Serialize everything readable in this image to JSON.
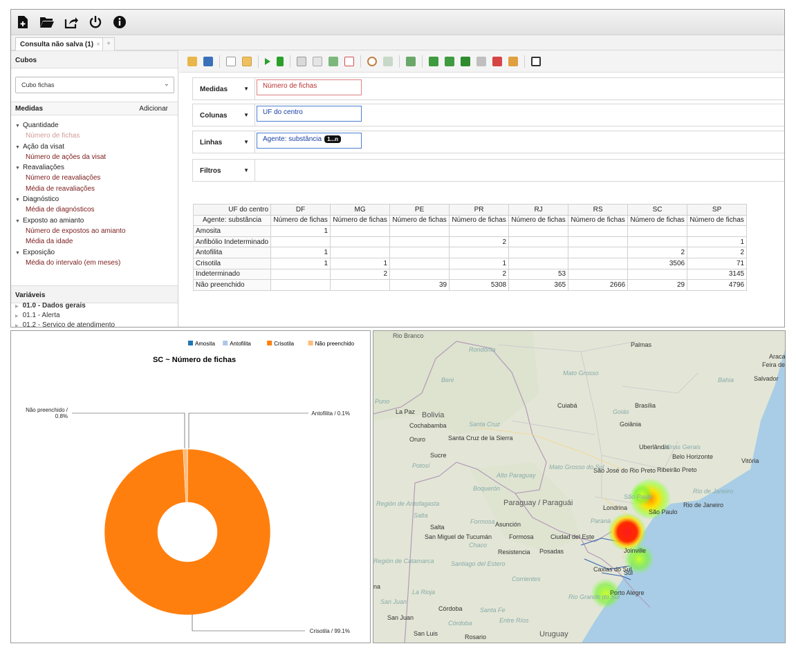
{
  "tabs": [
    {
      "label": "Consulta não salva (1)",
      "close": "×"
    }
  ],
  "tab_add": "+",
  "sidebar": {
    "cubes_header": "Cubos",
    "cube_selected": "Cubo fichas",
    "measures_header": "Medidas",
    "add_label": "Adicionar",
    "tree": [
      {
        "type": "group",
        "label": "Quantidade"
      },
      {
        "type": "item",
        "label": "Número de fichas",
        "dim": true
      },
      {
        "type": "group",
        "label": "Ação da visat"
      },
      {
        "type": "item",
        "label": "Número de ações da visat"
      },
      {
        "type": "group",
        "label": "Reavaliações"
      },
      {
        "type": "item",
        "label": "Número de reavaliações"
      },
      {
        "type": "item",
        "label": "Média de reavaliações"
      },
      {
        "type": "group",
        "label": "Diagnóstico"
      },
      {
        "type": "item",
        "label": "Média de diagnósticos"
      },
      {
        "type": "group",
        "label": "Exposto ao amianto"
      },
      {
        "type": "item",
        "label": "Número de expostos ao amianto"
      },
      {
        "type": "item",
        "label": "Média da idade"
      },
      {
        "type": "group",
        "label": "Exposição"
      },
      {
        "type": "item",
        "label": "Média do intervalo (em meses)"
      }
    ],
    "variables_header": "Variáveis",
    "variables": [
      "01.0 - Dados gerais",
      "01.1 - Alerta",
      "01.2 - Serviço de atendimento"
    ]
  },
  "dropzones": {
    "measures": {
      "label": "Medidas",
      "value": "Número de fichas"
    },
    "columns": {
      "label": "Colunas",
      "value": "UF do centro"
    },
    "rows": {
      "label": "Linhas",
      "value": "Agente: substância",
      "badge": "1...n"
    },
    "filters": {
      "label": "Filtros"
    }
  },
  "pivot": {
    "col_dim": "UF do centro",
    "row_dim": "Agente: substância",
    "columns": [
      "DF",
      "MG",
      "PE",
      "PR",
      "RJ",
      "RS",
      "SC",
      "SP"
    ],
    "measure": "Número de fichas",
    "rows": [
      {
        "label": "Amosita",
        "values": [
          "1",
          "",
          "",
          "",
          "",
          "",
          "",
          ""
        ]
      },
      {
        "label": "Anfibólio Indeterminado",
        "values": [
          "",
          "",
          "",
          "2",
          "",
          "",
          "",
          "1"
        ]
      },
      {
        "label": "Antofilita",
        "values": [
          "1",
          "",
          "",
          "",
          "",
          "",
          "2",
          "2"
        ]
      },
      {
        "label": "Crisotila",
        "values": [
          "1",
          "1",
          "",
          "1",
          "",
          "",
          "3506",
          "71"
        ]
      },
      {
        "label": "Indeterminado",
        "values": [
          "",
          "2",
          "",
          "2",
          "53",
          "",
          "",
          "3145"
        ]
      },
      {
        "label": "Não preenchido",
        "values": [
          "",
          "",
          "39",
          "5308",
          "365",
          "2666",
          "29",
          "4796"
        ]
      }
    ]
  },
  "chart_data": {
    "type": "pie",
    "title": "SC ~ Número de fichas",
    "categories": [
      "Amosita",
      "Antofilita",
      "Crisotila",
      "Não preenchido"
    ],
    "values": [
      0,
      2,
      3506,
      29
    ],
    "colors": [
      "#1f77b4",
      "#aec7e8",
      "#ff7f0e",
      "#ffbb78"
    ],
    "slice_labels": {
      "Antofilita": "Antofilita / 0.1%",
      "Crisotila": "Crisotila / 99.1%",
      "Nao_preenchido_line1": "Não preenchido /",
      "Nao_preenchido_line2": "0.8%"
    },
    "legend_position": "top-right"
  },
  "map": {
    "labels": {
      "rio_branco": "Rio Branco",
      "rondonia": "Rondônia",
      "beni": "Beni",
      "mato_grosso": "Mato Grosso",
      "palmas": "Palmas",
      "feira": "Feira de Sa",
      "aracaju": "Aracaju",
      "salvador": "Salvador",
      "bahia": "Bahia",
      "cuiaba": "Cuiabá",
      "brasilia": "Brasília",
      "goias": "Goiás",
      "goiania": "Goiânia",
      "la_paz": "La Paz",
      "puno": "Puno",
      "bolivia": "Bolivia",
      "cochabamba": "Cochabamba",
      "santa_cruz": "Santa Cruz",
      "oruro": "Oruro",
      "santa_cruz_sierra": "Santa Cruz de la Sierra",
      "sucre": "Sucre",
      "potosi": "Potosí",
      "uberlandia": "Uberlândia",
      "minas": "Minas Gerais",
      "belo_horizonte": "Belo Horizonte",
      "vitoria": "Vitória",
      "ribeirao": "Ribeirão Preto",
      "sao_jose": "São José do Rio Preto",
      "mato_grosso_sul": "Mato Grosso do Sul",
      "alto_paraguay": "Alto Paraguay",
      "boqueron": "Boquerón",
      "sao_paulo_state": "São Paulo",
      "sao_paulo": "São Paulo",
      "rio_janeiro_state": "Rio de Janeiro",
      "rio_janeiro": "Rio de Janeiro",
      "antofagasta": "Región de Antofagasta",
      "salta_it": "Salta",
      "paraguay": "Paraguay / Paraguái",
      "londrina": "Londrina",
      "parana": "Paraná",
      "formosa_it": "Formosa",
      "asuncion": "Asunción",
      "salta": "Salta",
      "san_miguel": "San Miguel de Tucumán",
      "chaco": "Chaco",
      "formosa": "Formosa",
      "ciudad_este": "Ciudad del Este",
      "joinville": "Joinville",
      "resistencia": "Resistencia",
      "posadas": "Posadas",
      "catamarca": "Región de Catamarca",
      "santiago": "Santiago del Estero",
      "corrientes": "Corrientes",
      "caxias": "Caxias do Sul",
      "sul": "Sul",
      "la_rioja": "La Rioja",
      "rio_grande": "Rio Grande do Sul",
      "porto_alegre": "Porto Alegre",
      "san_juan_it": "San Juan",
      "cordoba": "Córdoba",
      "santa_fe": "Santa Fe",
      "san_juan": "San Juan",
      "cordoba_it": "Córdoba",
      "entre_rios": "Entre Ríos",
      "san_luis": "San Luis",
      "rosario": "Rosario",
      "uruguay": "Uruguay",
      "na": "na"
    }
  }
}
